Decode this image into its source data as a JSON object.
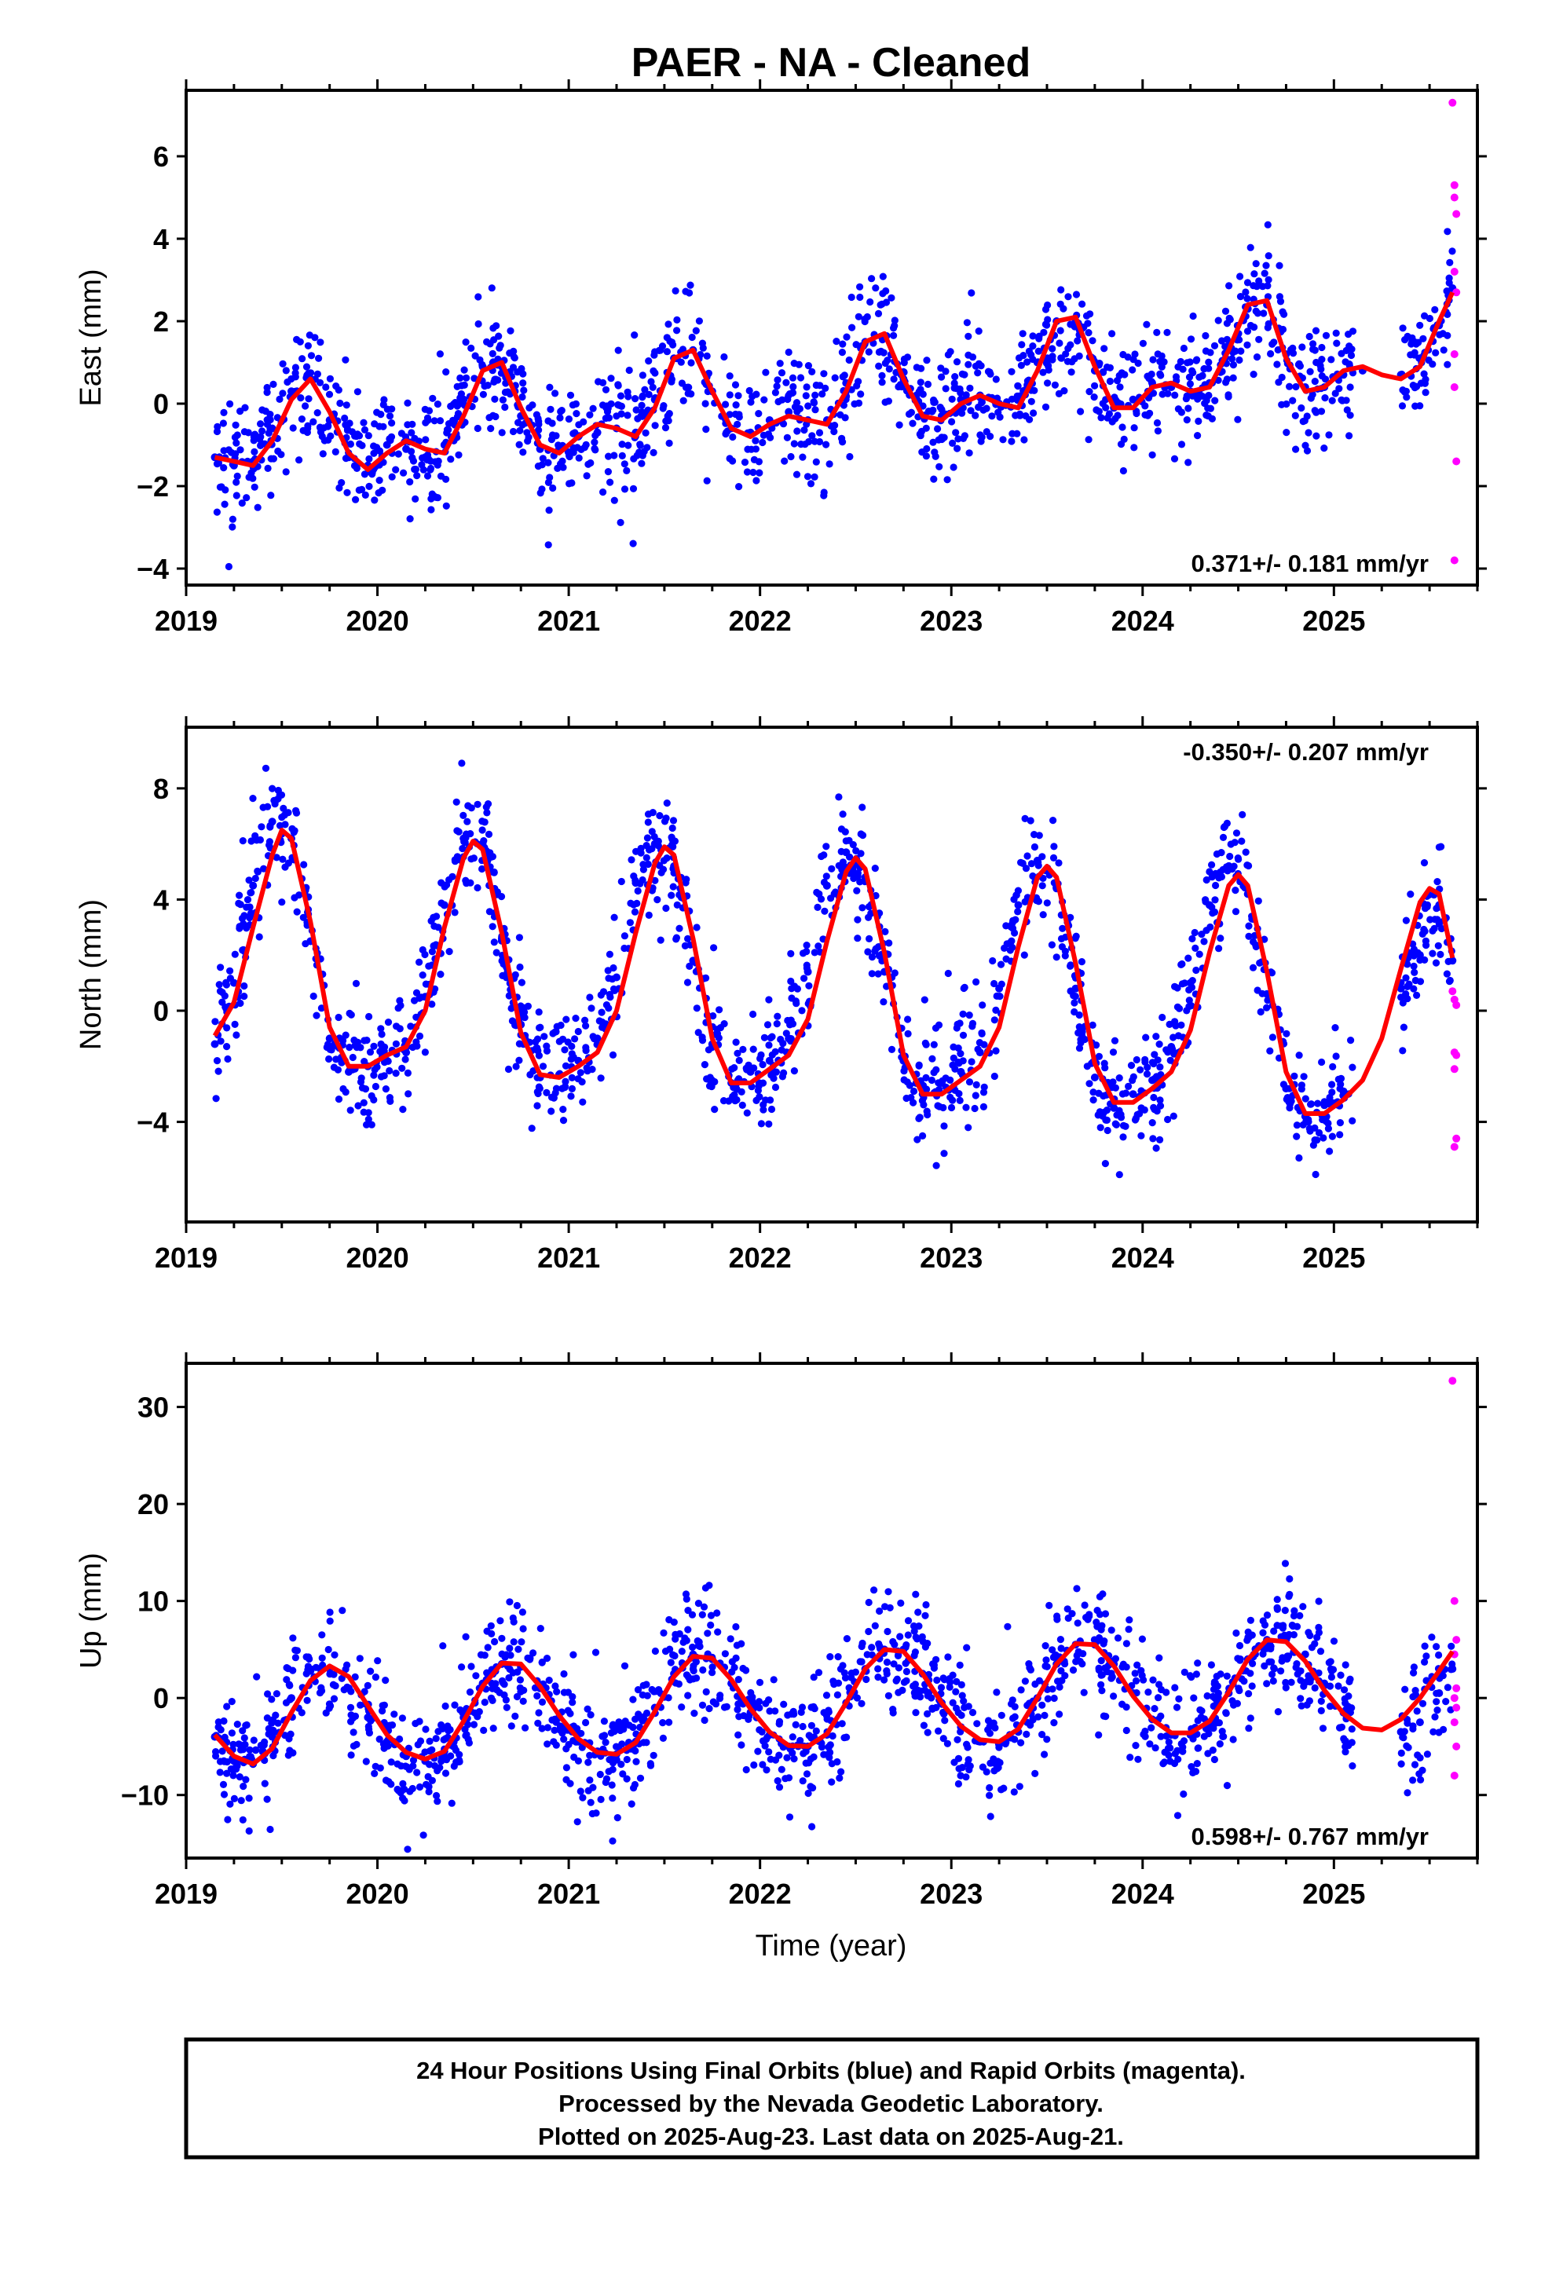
{
  "title": "PAER  - NA - Cleaned",
  "colors": {
    "final_orbits": "#0000ff",
    "rapid_orbits": "#ff00ff",
    "model": "#ff0000",
    "axes": "#000000"
  },
  "chart_data": [
    {
      "type": "scatter",
      "ylabel": "East (mm)",
      "xlabel": "",
      "xlim": [
        2019.0,
        2025.75
      ],
      "ylim": [
        -4.4,
        7.6
      ],
      "yticks": [
        -4,
        -2,
        0,
        2,
        4,
        6
      ],
      "xticks": [
        2019,
        2020,
        2021,
        2022,
        2023,
        2024,
        2025
      ],
      "grid": false,
      "rate": "0.371+/- 0.181 mm/yr",
      "rate_position": "bottom-right",
      "series": [
        {
          "name": "Final Orbits",
          "style": "points",
          "color": "#0000ff",
          "x": [
            2019.15,
            2019.25,
            2019.35,
            2019.45,
            2019.55,
            2019.65,
            2019.75,
            2019.85,
            2019.95,
            2020.05,
            2020.15,
            2020.25,
            2020.35,
            2020.45,
            2020.55,
            2020.65,
            2020.75,
            2020.85,
            2020.95,
            2021.05,
            2021.15,
            2021.25,
            2021.35,
            2021.45,
            2021.55,
            2021.65,
            2021.75,
            2021.85,
            2021.95,
            2022.05,
            2022.15,
            2022.25,
            2022.35,
            2022.45,
            2022.55,
            2022.65,
            2022.75,
            2022.85,
            2022.95,
            2023.05,
            2023.15,
            2023.25,
            2023.35,
            2023.45,
            2023.55,
            2023.65,
            2023.75,
            2023.85,
            2023.95,
            2024.05,
            2024.15,
            2024.25,
            2024.35,
            2024.45,
            2024.55,
            2024.65,
            2024.75,
            2024.85,
            2024.95,
            2025.05,
            2025.15,
            2025.35,
            2025.45,
            2025.55,
            2025.62
          ],
          "y": [
            -1.3,
            -1.5,
            -1.4,
            -0.6,
            0.3,
            0.6,
            -0.4,
            -1.3,
            -1.5,
            -1.0,
            -1.1,
            -1.3,
            -1.0,
            0.1,
            0.9,
            0.9,
            -0.3,
            -1.1,
            -1.1,
            -0.8,
            -0.7,
            -0.6,
            -0.7,
            0.1,
            1.1,
            1.3,
            0.3,
            -0.6,
            -0.7,
            -0.4,
            -0.2,
            -0.4,
            -0.4,
            0.5,
            1.5,
            1.6,
            0.6,
            -0.3,
            -0.3,
            0.1,
            0.2,
            0.0,
            0.1,
            1.0,
            2.0,
            2.0,
            0.8,
            -0.1,
            0.1,
            0.5,
            0.4,
            0.3,
            0.5,
            1.3,
            2.3,
            2.4,
            1.2,
            0.4,
            0.4,
            0.7,
            0.8,
            0.7,
            1.1,
            1.9,
            2.8
          ]
        },
        {
          "name": "Rapid Orbits",
          "style": "points",
          "color": "#ff00ff",
          "x": [
            2025.62,
            2025.63,
            2025.63,
            2025.64,
            2025.63,
            2025.64,
            2025.63,
            2025.63,
            2025.64,
            2025.63
          ],
          "y": [
            7.3,
            5.3,
            5.0,
            4.6,
            3.2,
            2.7,
            1.2,
            0.4,
            -1.4,
            -3.8
          ]
        },
        {
          "name": "Model",
          "style": "line",
          "color": "#ff0000",
          "x": [
            2019.15,
            2019.25,
            2019.35,
            2019.45,
            2019.55,
            2019.65,
            2019.75,
            2019.85,
            2019.95,
            2020.05,
            2020.15,
            2020.25,
            2020.35,
            2020.45,
            2020.55,
            2020.65,
            2020.75,
            2020.85,
            2020.95,
            2021.05,
            2021.15,
            2021.25,
            2021.35,
            2021.45,
            2021.55,
            2021.65,
            2021.75,
            2021.85,
            2021.95,
            2022.05,
            2022.15,
            2022.25,
            2022.35,
            2022.45,
            2022.55,
            2022.65,
            2022.75,
            2022.85,
            2022.95,
            2023.05,
            2023.15,
            2023.25,
            2023.35,
            2023.45,
            2023.55,
            2023.65,
            2023.75,
            2023.85,
            2023.95,
            2024.05,
            2024.15,
            2024.25,
            2024.35,
            2024.45,
            2024.55,
            2024.65,
            2024.75,
            2024.85,
            2024.95,
            2025.05,
            2025.15,
            2025.25,
            2025.35,
            2025.45,
            2025.55,
            2025.62
          ],
          "y": [
            -1.3,
            -1.4,
            -1.5,
            -0.9,
            0.1,
            0.6,
            -0.2,
            -1.2,
            -1.6,
            -1.2,
            -0.9,
            -1.1,
            -1.2,
            -0.3,
            0.8,
            1.0,
            -0.1,
            -1.0,
            -1.2,
            -0.8,
            -0.5,
            -0.6,
            -0.8,
            -0.1,
            1.1,
            1.3,
            0.3,
            -0.6,
            -0.8,
            -0.5,
            -0.3,
            -0.4,
            -0.5,
            0.3,
            1.5,
            1.7,
            0.6,
            -0.3,
            -0.4,
            0.0,
            0.2,
            0.0,
            -0.1,
            0.8,
            2.0,
            2.1,
            0.9,
            -0.1,
            -0.1,
            0.4,
            0.5,
            0.3,
            0.4,
            1.3,
            2.4,
            2.5,
            1.1,
            0.3,
            0.4,
            0.8,
            0.9,
            0.7,
            0.6,
            0.9,
            2.0,
            2.7
          ]
        }
      ]
    },
    {
      "type": "scatter",
      "ylabel": "North (mm)",
      "xlabel": "",
      "xlim": [
        2019.0,
        2025.75
      ],
      "ylim": [
        -7.6,
        10.2
      ],
      "yticks": [
        -4,
        0,
        4,
        8
      ],
      "xticks": [
        2019,
        2020,
        2021,
        2022,
        2023,
        2024,
        2025
      ],
      "grid": false,
      "rate": "-0.350+/- 0.207 mm/yr",
      "rate_position": "top-right",
      "series": [
        {
          "name": "Final Orbits",
          "style": "points",
          "color": "#0000ff",
          "x": [
            2019.15,
            2019.25,
            2019.35,
            2019.45,
            2019.55,
            2019.65,
            2019.75,
            2019.85,
            2019.95,
            2020.05,
            2020.15,
            2020.25,
            2020.35,
            2020.45,
            2020.55,
            2020.65,
            2020.75,
            2020.85,
            2020.95,
            2021.05,
            2021.15,
            2021.25,
            2021.35,
            2021.45,
            2021.55,
            2021.65,
            2021.75,
            2021.85,
            2021.95,
            2022.05,
            2022.15,
            2022.25,
            2022.35,
            2022.45,
            2022.55,
            2022.65,
            2022.75,
            2022.85,
            2022.95,
            2023.05,
            2023.15,
            2023.25,
            2023.35,
            2023.45,
            2023.55,
            2023.65,
            2023.75,
            2023.85,
            2023.95,
            2024.05,
            2024.15,
            2024.25,
            2024.35,
            2024.45,
            2024.55,
            2024.65,
            2024.75,
            2024.85,
            2024.95,
            2025.05,
            2025.35,
            2025.45,
            2025.55,
            2025.62
          ],
          "y": [
            -1.2,
            1.0,
            4.5,
            6.8,
            6.2,
            2.5,
            -1.0,
            -2.2,
            -2.0,
            -1.8,
            -1.5,
            0.5,
            3.8,
            6.2,
            6.0,
            2.6,
            -0.5,
            -2.4,
            -2.3,
            -1.8,
            -1.0,
            1.2,
            4.6,
            6.0,
            5.2,
            1.8,
            -1.2,
            -2.6,
            -2.2,
            -1.8,
            -1.0,
            1.4,
            4.5,
            5.7,
            4.8,
            1.4,
            -1.8,
            -3.0,
            -2.6,
            -2.2,
            -1.5,
            0.8,
            3.8,
            5.4,
            4.4,
            0.8,
            -2.4,
            -3.5,
            -3.0,
            -2.5,
            -1.3,
            1.0,
            3.8,
            5.2,
            4.2,
            0.6,
            -2.8,
            -3.8,
            -3.4,
            -2.9,
            0.8,
            2.0,
            3.8,
            1.8
          ]
        },
        {
          "name": "Rapid Orbits",
          "style": "points",
          "color": "#ff00ff",
          "x": [
            2025.62,
            2025.63,
            2025.64,
            2025.63,
            2025.64,
            2025.63,
            2025.64,
            2025.63
          ],
          "y": [
            0.7,
            0.4,
            0.2,
            -1.5,
            -1.6,
            -2.1,
            -4.6,
            -4.9
          ]
        },
        {
          "name": "Model",
          "style": "line",
          "color": "#ff0000",
          "x": [
            2019.15,
            2019.25,
            2019.35,
            2019.45,
            2019.5,
            2019.55,
            2019.65,
            2019.75,
            2019.85,
            2019.95,
            2020.05,
            2020.15,
            2020.25,
            2020.35,
            2020.45,
            2020.5,
            2020.55,
            2020.65,
            2020.75,
            2020.85,
            2020.95,
            2021.05,
            2021.15,
            2021.25,
            2021.35,
            2021.45,
            2021.5,
            2021.55,
            2021.65,
            2021.75,
            2021.85,
            2021.95,
            2022.05,
            2022.15,
            2022.25,
            2022.35,
            2022.45,
            2022.5,
            2022.55,
            2022.65,
            2022.75,
            2022.85,
            2022.95,
            2023.05,
            2023.15,
            2023.25,
            2023.35,
            2023.45,
            2023.5,
            2023.55,
            2023.65,
            2023.75,
            2023.85,
            2023.95,
            2024.05,
            2024.15,
            2024.25,
            2024.35,
            2024.45,
            2024.5,
            2024.55,
            2024.65,
            2024.75,
            2024.85,
            2024.95,
            2025.05,
            2025.15,
            2025.25,
            2025.35,
            2025.45,
            2025.5,
            2025.55,
            2025.62
          ],
          "y": [
            -0.9,
            0.3,
            3.0,
            5.6,
            6.5,
            6.2,
            3.2,
            -0.6,
            -2.0,
            -2.0,
            -1.6,
            -1.3,
            0.0,
            3.0,
            5.5,
            6.1,
            5.8,
            2.8,
            -0.8,
            -2.3,
            -2.4,
            -2.0,
            -1.5,
            0.0,
            2.8,
            5.3,
            5.9,
            5.6,
            2.6,
            -1.0,
            -2.6,
            -2.6,
            -2.1,
            -1.6,
            -0.3,
            2.5,
            5.0,
            5.5,
            5.1,
            2.1,
            -1.6,
            -3.0,
            -3.0,
            -2.5,
            -2.0,
            -0.6,
            2.3,
            4.8,
            5.2,
            4.8,
            1.7,
            -1.9,
            -3.3,
            -3.3,
            -2.8,
            -2.2,
            -0.7,
            2.1,
            4.5,
            4.9,
            4.5,
            1.4,
            -2.2,
            -3.7,
            -3.7,
            -3.2,
            -2.5,
            -1.0,
            1.5,
            3.9,
            4.4,
            4.2,
            1.9
          ]
        }
      ]
    },
    {
      "type": "scatter",
      "ylabel": "Up (mm)",
      "xlabel": "Time (year)",
      "xlim": [
        2019.0,
        2025.75
      ],
      "ylim": [
        -16.5,
        34.5
      ],
      "yticks": [
        -10,
        0,
        10,
        20,
        30
      ],
      "xticks": [
        2019,
        2020,
        2021,
        2022,
        2023,
        2024,
        2025
      ],
      "grid": false,
      "rate": "0.598+/- 0.767 mm/yr",
      "rate_position": "bottom-right",
      "series": [
        {
          "name": "Final Orbits",
          "style": "points",
          "color": "#0000ff",
          "x": [
            2019.15,
            2019.25,
            2019.35,
            2019.45,
            2019.55,
            2019.65,
            2019.75,
            2019.85,
            2019.95,
            2020.05,
            2020.15,
            2020.25,
            2020.35,
            2020.45,
            2020.55,
            2020.65,
            2020.75,
            2020.85,
            2020.95,
            2021.05,
            2021.15,
            2021.25,
            2021.35,
            2021.45,
            2021.55,
            2021.65,
            2021.75,
            2021.85,
            2021.95,
            2022.05,
            2022.15,
            2022.25,
            2022.35,
            2022.45,
            2022.55,
            2022.65,
            2022.75,
            2022.85,
            2022.95,
            2023.05,
            2023.15,
            2023.25,
            2023.35,
            2023.45,
            2023.55,
            2023.65,
            2023.75,
            2023.85,
            2023.95,
            2024.05,
            2024.15,
            2024.25,
            2024.35,
            2024.45,
            2024.55,
            2024.65,
            2024.75,
            2024.85,
            2024.95,
            2025.05,
            2025.35,
            2025.45,
            2025.55,
            2025.62
          ],
          "y": [
            -4.0,
            -6.5,
            -6.8,
            -4.0,
            0.0,
            2.8,
            3.0,
            1.0,
            -2.0,
            -4.5,
            -6.0,
            -6.5,
            -5.5,
            -2.0,
            1.5,
            3.5,
            3.2,
            1.0,
            -2.0,
            -4.5,
            -5.5,
            -5.8,
            -4.5,
            -1.0,
            2.5,
            4.5,
            4.0,
            1.5,
            -1.5,
            -3.8,
            -5.0,
            -5.0,
            -3.8,
            -0.5,
            3.0,
            5.0,
            5.0,
            2.5,
            -0.5,
            -3.0,
            -4.5,
            -4.8,
            -3.5,
            0.0,
            3.5,
            5.5,
            5.5,
            3.5,
            0.5,
            -2.2,
            -3.8,
            -3.8,
            -2.5,
            0.5,
            4.0,
            6.0,
            6.0,
            4.5,
            1.5,
            -1.5,
            -3.5,
            -2.5,
            0.5,
            3.0
          ]
        },
        {
          "name": "Rapid Orbits",
          "style": "points",
          "color": "#ff00ff",
          "x": [
            2025.62,
            2025.63,
            2025.64,
            2025.63,
            2025.64,
            2025.63,
            2025.64,
            2025.63,
            2025.64,
            2025.63
          ],
          "y": [
            32.7,
            10.0,
            6.0,
            4.5,
            1.0,
            0.0,
            -1.0,
            -2.5,
            -5.0,
            -8.0
          ]
        },
        {
          "name": "Model",
          "style": "line",
          "color": "#ff0000",
          "x": [
            2019.15,
            2019.25,
            2019.35,
            2019.45,
            2019.55,
            2019.65,
            2019.75,
            2019.85,
            2019.95,
            2020.05,
            2020.15,
            2020.25,
            2020.35,
            2020.45,
            2020.55,
            2020.65,
            2020.75,
            2020.85,
            2020.95,
            2021.05,
            2021.15,
            2021.25,
            2021.35,
            2021.45,
            2021.55,
            2021.65,
            2021.75,
            2021.85,
            2021.95,
            2022.05,
            2022.15,
            2022.25,
            2022.35,
            2022.45,
            2022.55,
            2022.65,
            2022.75,
            2022.85,
            2022.95,
            2023.05,
            2023.15,
            2023.25,
            2023.35,
            2023.45,
            2023.55,
            2023.65,
            2023.75,
            2023.85,
            2023.95,
            2024.05,
            2024.15,
            2024.25,
            2024.35,
            2024.45,
            2024.55,
            2024.65,
            2024.75,
            2024.85,
            2024.95,
            2025.05,
            2025.15,
            2025.25,
            2025.35,
            2025.45,
            2025.55,
            2025.62
          ],
          "y": [
            -3.8,
            -6.0,
            -6.8,
            -5.2,
            -1.5,
            1.8,
            3.3,
            2.2,
            -0.8,
            -3.8,
            -5.6,
            -6.3,
            -5.5,
            -2.4,
            1.2,
            3.6,
            3.5,
            1.2,
            -1.8,
            -4.2,
            -5.6,
            -5.8,
            -4.6,
            -1.4,
            2.2,
            4.3,
            4.1,
            1.9,
            -1.1,
            -3.5,
            -4.9,
            -5.0,
            -3.7,
            -0.5,
            3.0,
            5.0,
            4.8,
            2.5,
            -0.5,
            -2.9,
            -4.3,
            -4.5,
            -3.2,
            0.0,
            3.5,
            5.6,
            5.5,
            3.3,
            0.2,
            -2.2,
            -3.6,
            -3.6,
            -2.4,
            0.6,
            4.0,
            6.0,
            5.8,
            3.8,
            0.8,
            -1.6,
            -3.1,
            -3.3,
            -2.2,
            0.0,
            2.8,
            4.8
          ]
        }
      ]
    }
  ],
  "footer": {
    "line1": "24 Hour Positions Using Final Orbits (blue) and Rapid Orbits (magenta).",
    "line2": "Processed by the Nevada Geodetic Laboratory.",
    "line3": "Plotted on 2025-Aug-23. Last data on 2025-Aug-21."
  }
}
